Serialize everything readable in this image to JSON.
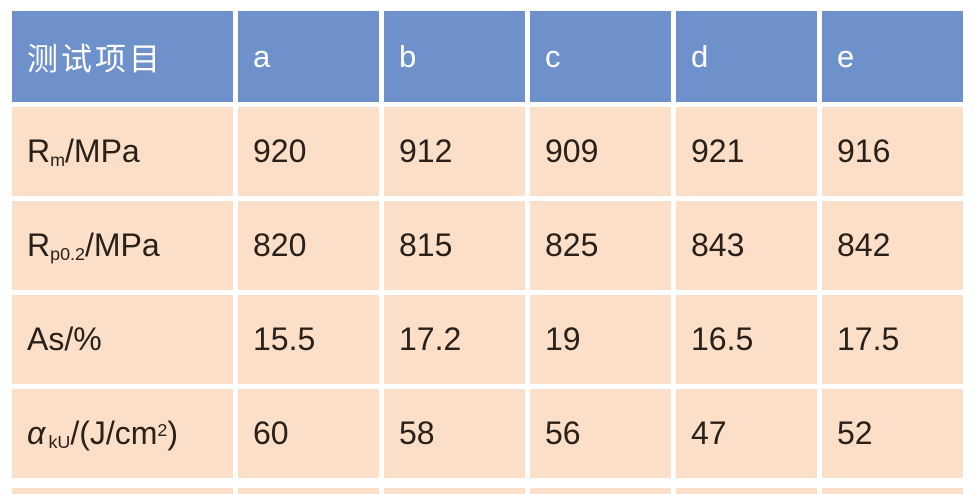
{
  "colors": {
    "header_bg": "#6E91CB",
    "header_text": "#FFFFFF",
    "row_bg": "#FBDFC9",
    "text": "#2A201A",
    "grid_gap": "#FFFFFF"
  },
  "table": {
    "header_row": {
      "label": "测试项目",
      "columns": [
        "a",
        "b",
        "c",
        "d",
        "e"
      ]
    },
    "rows": [
      {
        "id": "rm-mpa",
        "label_plain": "Rm/MPa",
        "label_parts": [
          {
            "t": "R"
          },
          {
            "t": "m",
            "s": "sub"
          },
          {
            "t": "/MPa"
          }
        ],
        "values": [
          "920",
          "912",
          "909",
          "921",
          "916"
        ]
      },
      {
        "id": "rp02-mpa",
        "label_plain": "Rp0.2/MPa",
        "label_parts": [
          {
            "t": "R"
          },
          {
            "t": "p0.2",
            "s": "sub"
          },
          {
            "t": "/MPa"
          }
        ],
        "values": [
          "820",
          "815",
          "825",
          "843",
          "842"
        ]
      },
      {
        "id": "as-percent",
        "label_plain": "As/%",
        "label_parts": [
          {
            "t": "As/%"
          }
        ],
        "values": [
          "15.5",
          "17.2",
          "19",
          "16.5",
          "17.5"
        ]
      },
      {
        "id": "aku-jcm2",
        "label_plain": "αkU/(J/cm2)",
        "label_parts": [
          {
            "t": "α",
            "s": "italic"
          },
          {
            "t": "kU",
            "s": "sub"
          },
          {
            "t": "/(J/cm"
          },
          {
            "t": "2",
            "s": "sup"
          },
          {
            "t": ")"
          }
        ],
        "values": [
          "60",
          "58",
          "56",
          "47",
          "52"
        ]
      }
    ]
  },
  "chart_data": {
    "type": "table",
    "title": "",
    "columns": [
      "测试项目",
      "a",
      "b",
      "c",
      "d",
      "e"
    ],
    "rows": [
      [
        "Rm/MPa",
        920,
        912,
        909,
        921,
        916
      ],
      [
        "Rp0.2/MPa",
        820,
        815,
        825,
        843,
        842
      ],
      [
        "As/%",
        15.5,
        17.2,
        19,
        16.5,
        17.5
      ],
      [
        "αkU/(J/cm2)",
        60,
        58,
        56,
        47,
        52
      ]
    ]
  }
}
